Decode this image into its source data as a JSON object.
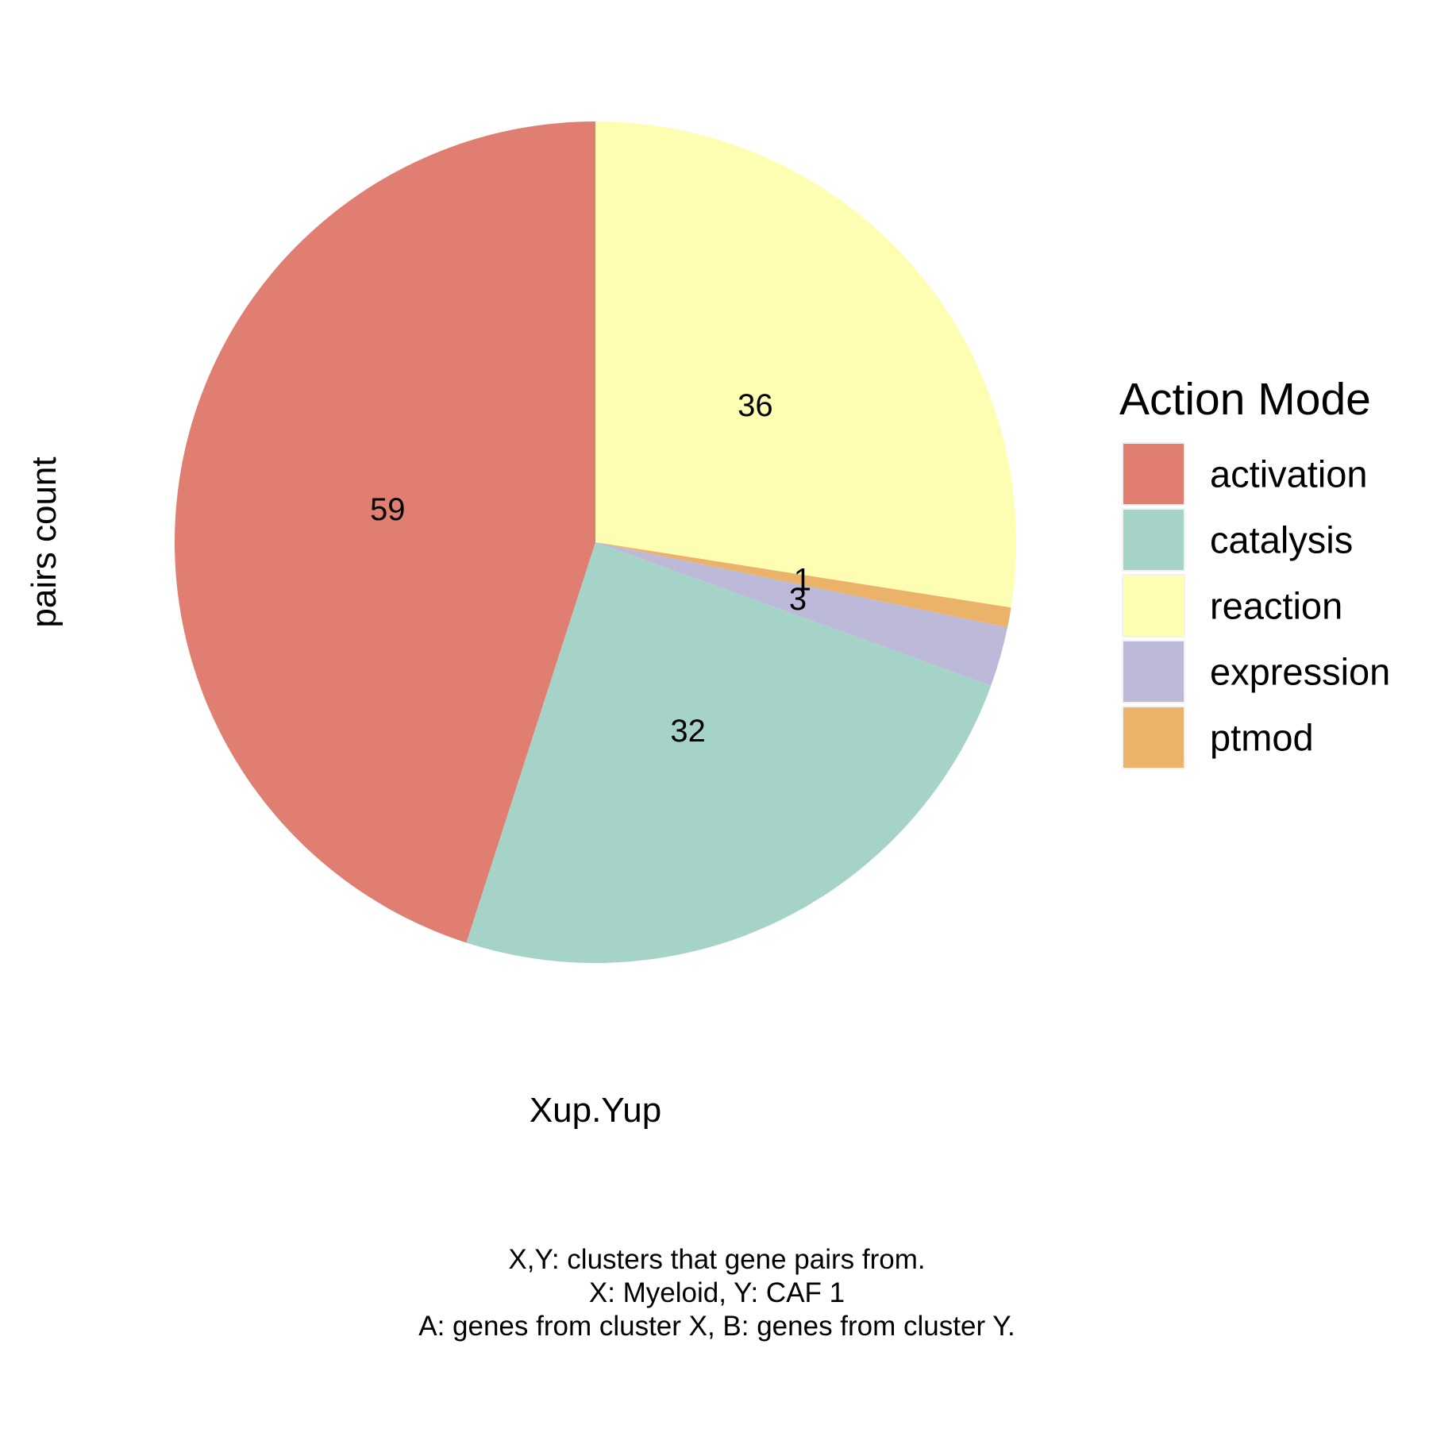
{
  "chart_data": {
    "type": "pie",
    "categories": [
      "activation",
      "catalysis",
      "reaction",
      "expression",
      "ptmod"
    ],
    "values": [
      59,
      32,
      36,
      3,
      1
    ],
    "colors": [
      "#E07E72",
      "#A6D3C7",
      "#FEFEB3",
      "#BDB9D8",
      "#EBB36A"
    ],
    "slice_order_clockwise_from_top": [
      "reaction",
      "ptmod",
      "expression",
      "catalysis",
      "activation"
    ],
    "xlabel": "Xup.Yup",
    "ylabel": "pairs count",
    "legend": {
      "title": "Action Mode",
      "entries": [
        "activation",
        "catalysis",
        "reaction",
        "expression",
        "ptmod"
      ],
      "position": "right"
    },
    "caption": [
      "X,Y: clusters that gene pairs from.",
      "X: Myeloid, Y: CAF 1",
      "A: genes from cluster X, B: genes from cluster Y."
    ]
  }
}
